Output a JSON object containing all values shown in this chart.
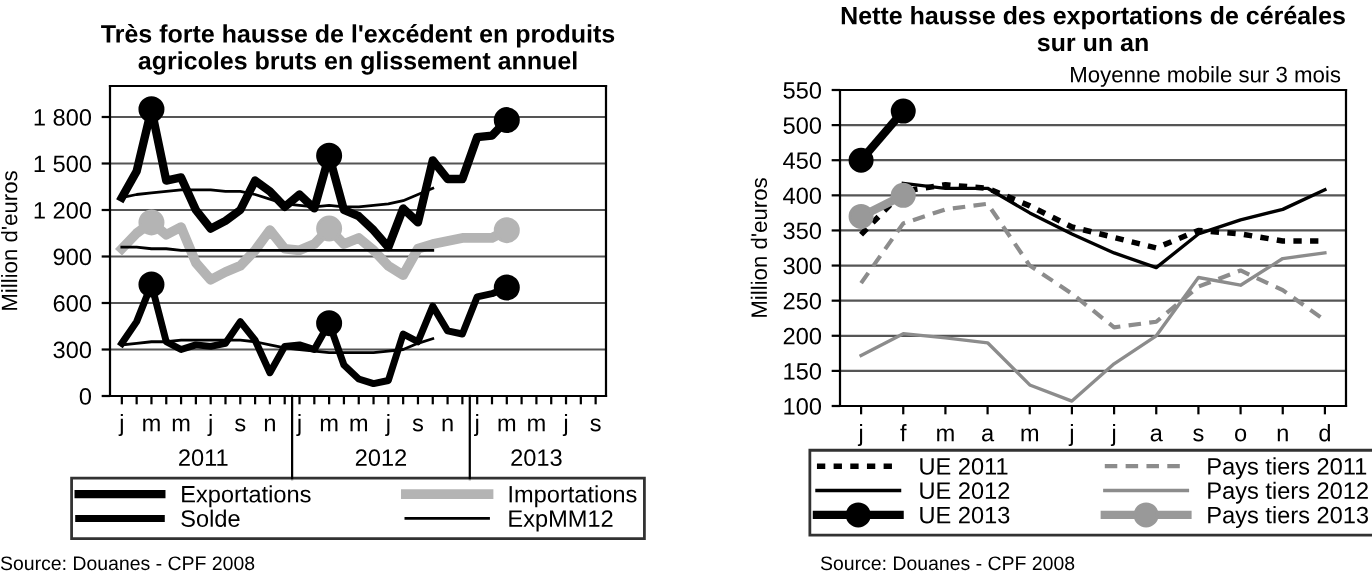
{
  "chart_data": [
    {
      "type": "line",
      "title": "Très forte hausse de l'excédent en produits\nagricoles bruts en glissement annuel",
      "ylabel": "Million d'euros",
      "categories": [
        "j",
        null,
        "m",
        null,
        "m",
        null,
        "j",
        null,
        "s",
        null,
        "n",
        null,
        "j",
        null,
        "m",
        null,
        "m",
        null,
        "j",
        null,
        "s",
        null,
        "n",
        null,
        "j",
        null,
        "m",
        null,
        "m",
        null,
        "j",
        null,
        "s"
      ],
      "ylim": [
        0,
        2000
      ],
      "yticks": [
        0,
        300,
        600,
        900,
        {
          "value": 1200,
          "label": "1 200"
        },
        {
          "value": 1500,
          "label": "1 500"
        },
        {
          "value": 1800,
          "label": "1 800"
        }
      ],
      "grid": "y",
      "legend": "bottom",
      "series": [
        {
          "name": "Exportations",
          "color": "#000000",
          "values": [
            1280,
            1450,
            1850,
            1390,
            1410,
            1200,
            1080,
            1130,
            1200,
            1390,
            1320,
            1220,
            1300,
            1210,
            1550,
            1200,
            1160,
            1070,
            960,
            1210,
            1120,
            1520,
            1400,
            1400,
            1670,
            1680,
            1780,
            null,
            null,
            null,
            null,
            null,
            null
          ]
        },
        {
          "name": "Solde",
          "color": "#000000",
          "values": [
            340,
            480,
            720,
            350,
            300,
            330,
            320,
            340,
            480,
            360,
            150,
            320,
            330,
            300,
            470,
            200,
            110,
            80,
            100,
            400,
            350,
            580,
            420,
            400,
            640,
            660,
            700,
            null,
            null,
            null,
            null,
            null,
            null
          ]
        },
        {
          "name": "Importations",
          "color": "#b4b4b4",
          "values": [
            950,
            1050,
            1120,
            1040,
            1090,
            860,
            750,
            800,
            840,
            940,
            1070,
            950,
            940,
            980,
            1080,
            980,
            1020,
            940,
            840,
            780,
            950,
            980,
            1000,
            1020,
            1020,
            1020,
            1070,
            null,
            null,
            null,
            null,
            null,
            null
          ]
        },
        {
          "name": "ExpMM12",
          "color": "#000000",
          "values": [
            1280,
            1300,
            1310,
            1320,
            1330,
            1330,
            1330,
            1320,
            1320,
            1300,
            1270,
            1240,
            1230,
            1220,
            1230,
            1220,
            1220,
            1230,
            1240,
            1260,
            1300,
            1340,
            null,
            null,
            null,
            null,
            null,
            null,
            null,
            null,
            null,
            null,
            null
          ]
        },
        {
          "color": "#000000",
          "values": [
            960,
            960,
            950,
            950,
            940,
            940,
            940,
            940,
            940,
            940,
            940,
            940,
            940,
            940,
            940,
            940,
            940,
            940,
            940,
            940,
            940,
            940,
            null,
            null,
            null,
            null,
            null,
            null,
            null,
            null,
            null,
            null,
            null
          ]
        },
        {
          "color": "#000000",
          "values": [
            330,
            340,
            350,
            350,
            360,
            360,
            360,
            360,
            360,
            350,
            330,
            310,
            300,
            290,
            280,
            280,
            280,
            280,
            290,
            300,
            340,
            370,
            null,
            null,
            null,
            null,
            null,
            null,
            null,
            null,
            null,
            null,
            null
          ]
        },
        {
          "type": "scatter",
          "marker": "circle",
          "color": "#000000",
          "values": [
            null,
            null,
            1850,
            null,
            null,
            null,
            null,
            null,
            null,
            null,
            null,
            null,
            null,
            null,
            1550,
            null,
            null,
            null,
            null,
            null,
            null,
            null,
            null,
            null,
            null,
            null,
            1780,
            null,
            null,
            null,
            null,
            null,
            null
          ]
        },
        {
          "type": "scatter",
          "marker": "circle",
          "color": "#b4b4b4",
          "values": [
            null,
            null,
            1120,
            null,
            null,
            null,
            null,
            null,
            null,
            null,
            null,
            null,
            null,
            null,
            1080,
            null,
            null,
            null,
            null,
            null,
            null,
            null,
            null,
            null,
            null,
            null,
            1070,
            null,
            null,
            null,
            null,
            null,
            null
          ]
        },
        {
          "type": "scatter",
          "marker": "circle",
          "color": "#000000",
          "values": [
            null,
            null,
            720,
            null,
            null,
            null,
            null,
            null,
            null,
            null,
            null,
            null,
            null,
            null,
            470,
            null,
            null,
            null,
            null,
            null,
            null,
            null,
            null,
            null,
            null,
            null,
            700,
            null,
            null,
            null,
            null,
            null,
            null
          ]
        }
      ],
      "annotations": [
        "2011",
        "2012",
        "2013",
        "Source: Douanes - CPF 2008"
      ]
    },
    {
      "type": "line",
      "title": "Nette hausse des exportations de céréales\nsur un an",
      "subtitle": "Moyenne mobile sur 3 mois",
      "ylabel": "Million d'euros",
      "categories": [
        "j",
        "f",
        "m",
        "a",
        "m",
        "j",
        "j",
        "a",
        "s",
        "o",
        "n",
        "d"
      ],
      "ylim": [
        100,
        550
      ],
      "yticks": [
        100,
        150,
        200,
        250,
        300,
        350,
        400,
        450,
        500,
        550
      ],
      "grid": "y",
      "legend": "bottom",
      "series": [
        {
          "name": "UE 2011",
          "color": "#000000",
          "line_style": "dotted",
          "values": [
            344,
            406,
            415,
            410,
            385,
            355,
            340,
            325,
            350,
            345,
            335,
            335
          ]
        },
        {
          "name": "UE 2012",
          "color": "#000000",
          "values": [
            null,
            417,
            410,
            410,
            375,
            345,
            318,
            297,
            345,
            365,
            380,
            408
          ]
        },
        {
          "name": "UE 2013",
          "color": "#000000",
          "marker": "circle",
          "values": [
            450,
            520,
            null,
            null,
            null,
            null,
            null,
            null,
            null,
            null,
            null,
            null
          ]
        },
        {
          "name": "Pays tiers 2011",
          "color": "#8c8c8c",
          "line_style": "dashed",
          "values": [
            275,
            360,
            380,
            388,
            300,
            260,
            212,
            220,
            270,
            293,
            265,
            222
          ]
        },
        {
          "name": "Pays tiers 2012",
          "color": "#8c8c8c",
          "values": [
            172,
            203,
            197,
            190,
            130,
            107,
            160,
            200,
            283,
            272,
            310,
            318
          ]
        },
        {
          "name": "Pays tiers 2013",
          "color": "#999999",
          "marker": "circle",
          "values": [
            370,
            400,
            null,
            null,
            null,
            null,
            null,
            null,
            null,
            null,
            null,
            null
          ]
        }
      ],
      "annotations": [
        "Source: Douanes - CPF 2008"
      ]
    }
  ]
}
